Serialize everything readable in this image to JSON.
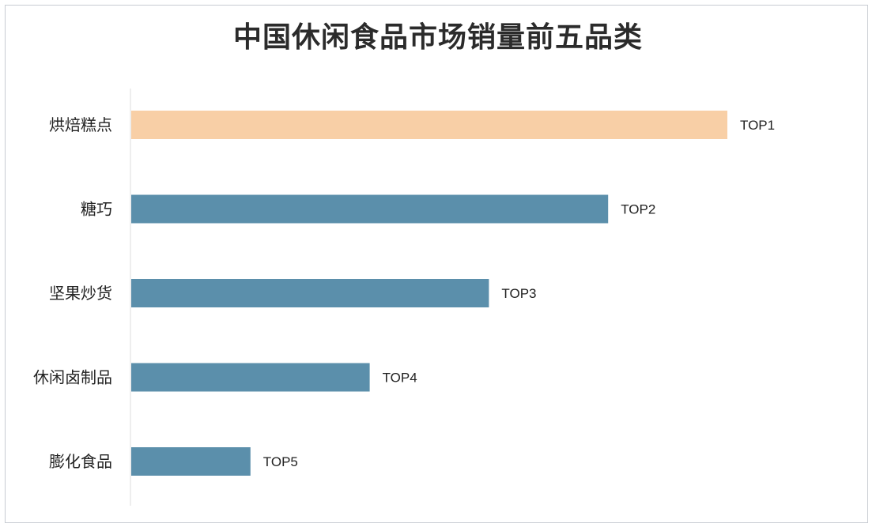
{
  "chart_data": {
    "type": "bar",
    "orientation": "horizontal",
    "title": "中国休闲食品市场销量前五品类",
    "xlabel": "",
    "ylabel": "",
    "grid": false,
    "legend": "none",
    "categories": [
      "烘焙糕点",
      "糖巧",
      "坚果炒货",
      "休闲卤制品",
      "膨化食品"
    ],
    "ranks": [
      1,
      2,
      3,
      4,
      5
    ],
    "values": [
      5,
      4,
      3,
      2,
      1
    ],
    "data_labels": [
      "TOP1",
      "TOP2",
      "TOP3",
      "TOP4",
      "TOP5"
    ],
    "colors": {
      "highlight": "#f8cfa6",
      "default": "#5b8fab",
      "axis": "#dddddd",
      "text": "#222222"
    }
  }
}
